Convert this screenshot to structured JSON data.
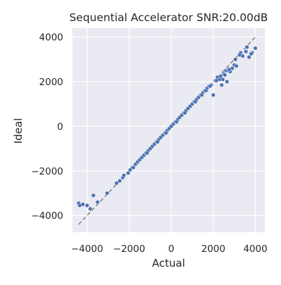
{
  "chart_data": {
    "type": "scatter",
    "title": "Sequential Accelerator SNR:20.00dB",
    "xlabel": "Actual",
    "ylabel": "Ideal",
    "xlim": [
      -4700,
      4450
    ],
    "ylim": [
      -4750,
      4400
    ],
    "xticks": [
      -4000,
      -2000,
      0,
      2000,
      4000
    ],
    "yticks": [
      -4000,
      -2000,
      0,
      2000,
      4000
    ],
    "xtick_labels": [
      "−4000",
      "−2000",
      "0",
      "2000",
      "4000"
    ],
    "ytick_labels": [
      "−4000",
      "−2000",
      "0",
      "2000",
      "4000"
    ],
    "grid": true,
    "reference_line": {
      "style": "dashed",
      "color": "#808080",
      "from": [
        -4400,
        -4400
      ],
      "to": [
        4050,
        4050
      ]
    },
    "colors": {
      "background": "#eaeaf2",
      "grid": "#ffffff",
      "points": "#4c72b0",
      "point_edge": "#ffffff"
    },
    "series": [
      {
        "x": [
          -4400,
          -4350,
          -4200,
          -4000,
          -3850,
          -3700,
          -3500,
          -3050,
          -2600,
          -2450,
          -2300,
          -2050,
          -1950,
          -1850,
          -1700,
          -1600,
          -1500,
          -1400,
          -1300,
          -1200,
          -1100,
          -1000,
          -900,
          -800,
          -700,
          -600,
          -500,
          -400,
          -300,
          -200,
          -100,
          0,
          100,
          200,
          300,
          400,
          500,
          600,
          700,
          800,
          900,
          1000,
          1100,
          1200,
          1300,
          1400,
          1500,
          1600,
          1700,
          1800,
          1900,
          2000,
          2100,
          2200,
          2300,
          2400,
          2500,
          2600,
          2700,
          2800,
          2900,
          3000,
          3100,
          3300,
          3400,
          3600,
          3700,
          3850,
          4000,
          -2250,
          -1800,
          -1150,
          -650,
          -250,
          250,
          650,
          1150,
          1450,
          1650,
          1850,
          2150,
          2350,
          2450,
          2550,
          2650,
          2750,
          3050,
          3250,
          3550,
          3800
        ],
        "y": [
          -3450,
          -3550,
          -3500,
          -3550,
          -3700,
          -3100,
          -3400,
          -3000,
          -2550,
          -2450,
          -2300,
          -2100,
          -1950,
          -1850,
          -1700,
          -1600,
          -1500,
          -1400,
          -1300,
          -1200,
          -1100,
          -1000,
          -900,
          -800,
          -700,
          -600,
          -500,
          -400,
          -300,
          -200,
          -100,
          0,
          100,
          200,
          300,
          400,
          500,
          600,
          700,
          800,
          900,
          1000,
          1100,
          1200,
          1300,
          1400,
          1500,
          1600,
          1700,
          1800,
          1850,
          1400,
          2050,
          2200,
          2100,
          1850,
          2350,
          2500,
          2500,
          2450,
          2600,
          2750,
          2700,
          3300,
          3150,
          3550,
          3100,
          3300,
          3500,
          -2200,
          -1850,
          -1200,
          -700,
          -300,
          200,
          600,
          1100,
          1400,
          1600,
          1800,
          2050,
          2250,
          2100,
          2300,
          2000,
          2550,
          3000,
          3200,
          3350,
          3250
        ]
      }
    ]
  }
}
